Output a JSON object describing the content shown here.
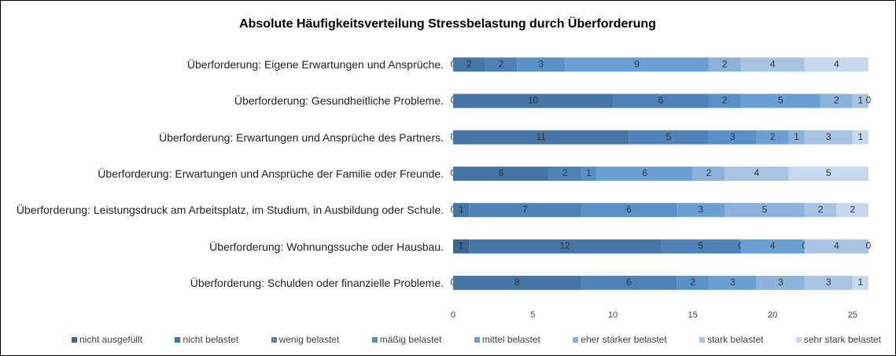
{
  "chart_data": {
    "type": "stacked_barh",
    "title": "Absolute Häufigkeitsverteilung Stressbelastung durch Überforderung",
    "categories": [
      "Überforderung: Eigene Erwartungen und Ansprüche.",
      "Überforderung: Gesundheitliche Probleme.",
      "Überforderung: Erwartungen und Ansprüche des Partners.",
      "Überforderung: Erwartungen und Ansprüche der Familie oder Freunde.",
      "Überforderung: Leistungsdruck am Arbeitsplatz, im Studium, in Ausbildung oder Schule.",
      "Überforderung: Wohnungssuche oder Hausbau.",
      "Überforderung: Schulden oder finanzielle Probleme."
    ],
    "series": [
      {
        "name": "nicht ausgefüllt",
        "color": "#3b6791",
        "values": [
          0,
          0,
          0,
          0,
          0,
          1,
          0
        ]
      },
      {
        "name": "nicht belastet",
        "color": "#4676a6",
        "values": [
          2,
          10,
          11,
          6,
          1,
          12,
          8
        ]
      },
      {
        "name": "wenig belastet",
        "color": "#4f82b7",
        "values": [
          2,
          6,
          5,
          2,
          7,
          5,
          6
        ]
      },
      {
        "name": "mäßig belastet",
        "color": "#5890c8",
        "values": [
          3,
          2,
          3,
          1,
          6,
          0,
          2
        ]
      },
      {
        "name": "mittel belastet",
        "color": "#6ba0d4",
        "values": [
          9,
          5,
          2,
          6,
          3,
          4,
          3
        ]
      },
      {
        "name": "eher stärker belastet",
        "color": "#8bb2da",
        "values": [
          2,
          2,
          1,
          2,
          5,
          0,
          3
        ]
      },
      {
        "name": "stark belastet",
        "color": "#a8c4e3",
        "values": [
          4,
          1,
          3,
          4,
          2,
          4,
          3
        ]
      },
      {
        "name": "sehr stark belastet",
        "color": "#c6d9ee",
        "values": [
          4,
          0,
          1,
          5,
          2,
          0,
          1
        ]
      }
    ],
    "xlim": [
      0,
      26
    ],
    "xticks": [
      0,
      5,
      10,
      15,
      20,
      25
    ],
    "legend": "bottom"
  }
}
